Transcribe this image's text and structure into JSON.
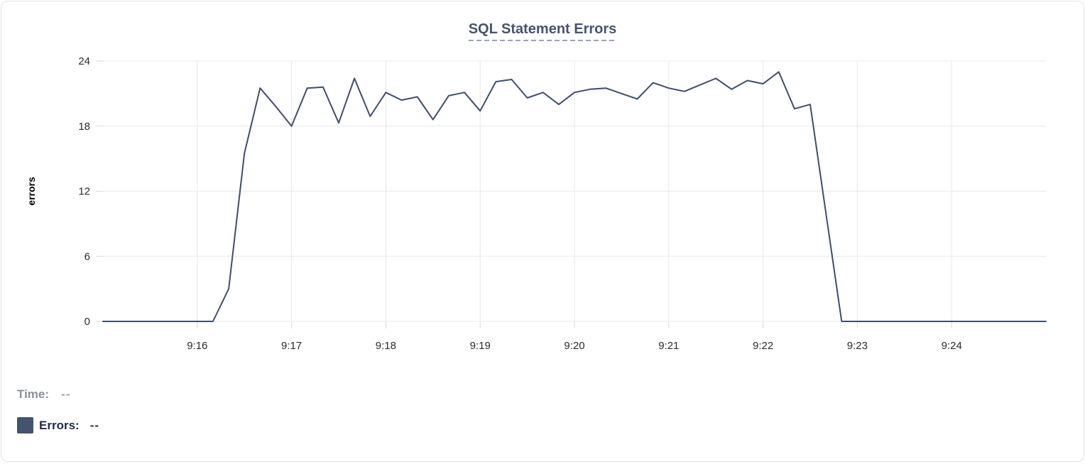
{
  "card": {
    "title": "SQL Statement Errors"
  },
  "colors": {
    "title": "#44546F",
    "title_underline": "#98A5BE",
    "line": "#3E4E6E",
    "swatch": "#44536E",
    "grid": "#E8E8E8",
    "tick": "#D9D9D9",
    "axis_text": "#2B2B2B",
    "axis_label": "#000000"
  },
  "tooltip": {
    "time_label": "Time:",
    "time_value": "--",
    "errors_label": "Errors:",
    "errors_value": "--"
  },
  "chart_data": {
    "type": "line",
    "title": "SQL Statement Errors",
    "xlabel": "",
    "ylabel": "errors",
    "ylim": [
      0,
      24
    ],
    "yticks": [
      0,
      6,
      12,
      18,
      24
    ],
    "xticks": [
      "9:16",
      "9:17",
      "9:18",
      "9:19",
      "9:20",
      "9:21",
      "9:22",
      "9:23",
      "9:24"
    ],
    "x_domain": [
      "9:15:00",
      "9:25:00"
    ],
    "grid": true,
    "legend_position": "bottom-left",
    "series": [
      {
        "name": "Errors",
        "color": "#3E4E6E",
        "x": [
          "9:15:00",
          "9:15:10",
          "9:15:20",
          "9:15:30",
          "9:15:40",
          "9:15:50",
          "9:16:00",
          "9:16:10",
          "9:16:20",
          "9:16:30",
          "9:16:40",
          "9:16:50",
          "9:17:00",
          "9:17:10",
          "9:17:20",
          "9:17:30",
          "9:17:40",
          "9:17:50",
          "9:18:00",
          "9:18:10",
          "9:18:20",
          "9:18:30",
          "9:18:40",
          "9:18:50",
          "9:19:00",
          "9:19:10",
          "9:19:20",
          "9:19:30",
          "9:19:40",
          "9:19:50",
          "9:20:00",
          "9:20:10",
          "9:20:20",
          "9:20:30",
          "9:20:40",
          "9:20:50",
          "9:21:00",
          "9:21:10",
          "9:21:20",
          "9:21:30",
          "9:21:40",
          "9:21:50",
          "9:22:00",
          "9:22:10",
          "9:22:20",
          "9:22:30",
          "9:22:40",
          "9:22:50",
          "9:23:00",
          "9:23:10",
          "9:23:20",
          "9:23:30",
          "9:23:40",
          "9:23:50",
          "9:24:00",
          "9:24:10",
          "9:24:20",
          "9:24:30",
          "9:24:40",
          "9:24:50",
          "9:25:00"
        ],
        "values": [
          0,
          0,
          0,
          0,
          0,
          0,
          0,
          0,
          3,
          15.5,
          21.5,
          19.8,
          18,
          21.5,
          21.6,
          18.3,
          22.4,
          18.9,
          21.1,
          20.4,
          20.7,
          18.6,
          20.8,
          21.1,
          19.4,
          22.1,
          22.3,
          20.6,
          21.1,
          20,
          21.1,
          21.4,
          21.5,
          21,
          20.5,
          22,
          21.5,
          21.2,
          21.8,
          22.4,
          21.4,
          22.2,
          21.9,
          23,
          19.6,
          20,
          10,
          0,
          0,
          0,
          0,
          0,
          0,
          0,
          0,
          0,
          0,
          0,
          0,
          0,
          0
        ]
      }
    ]
  }
}
